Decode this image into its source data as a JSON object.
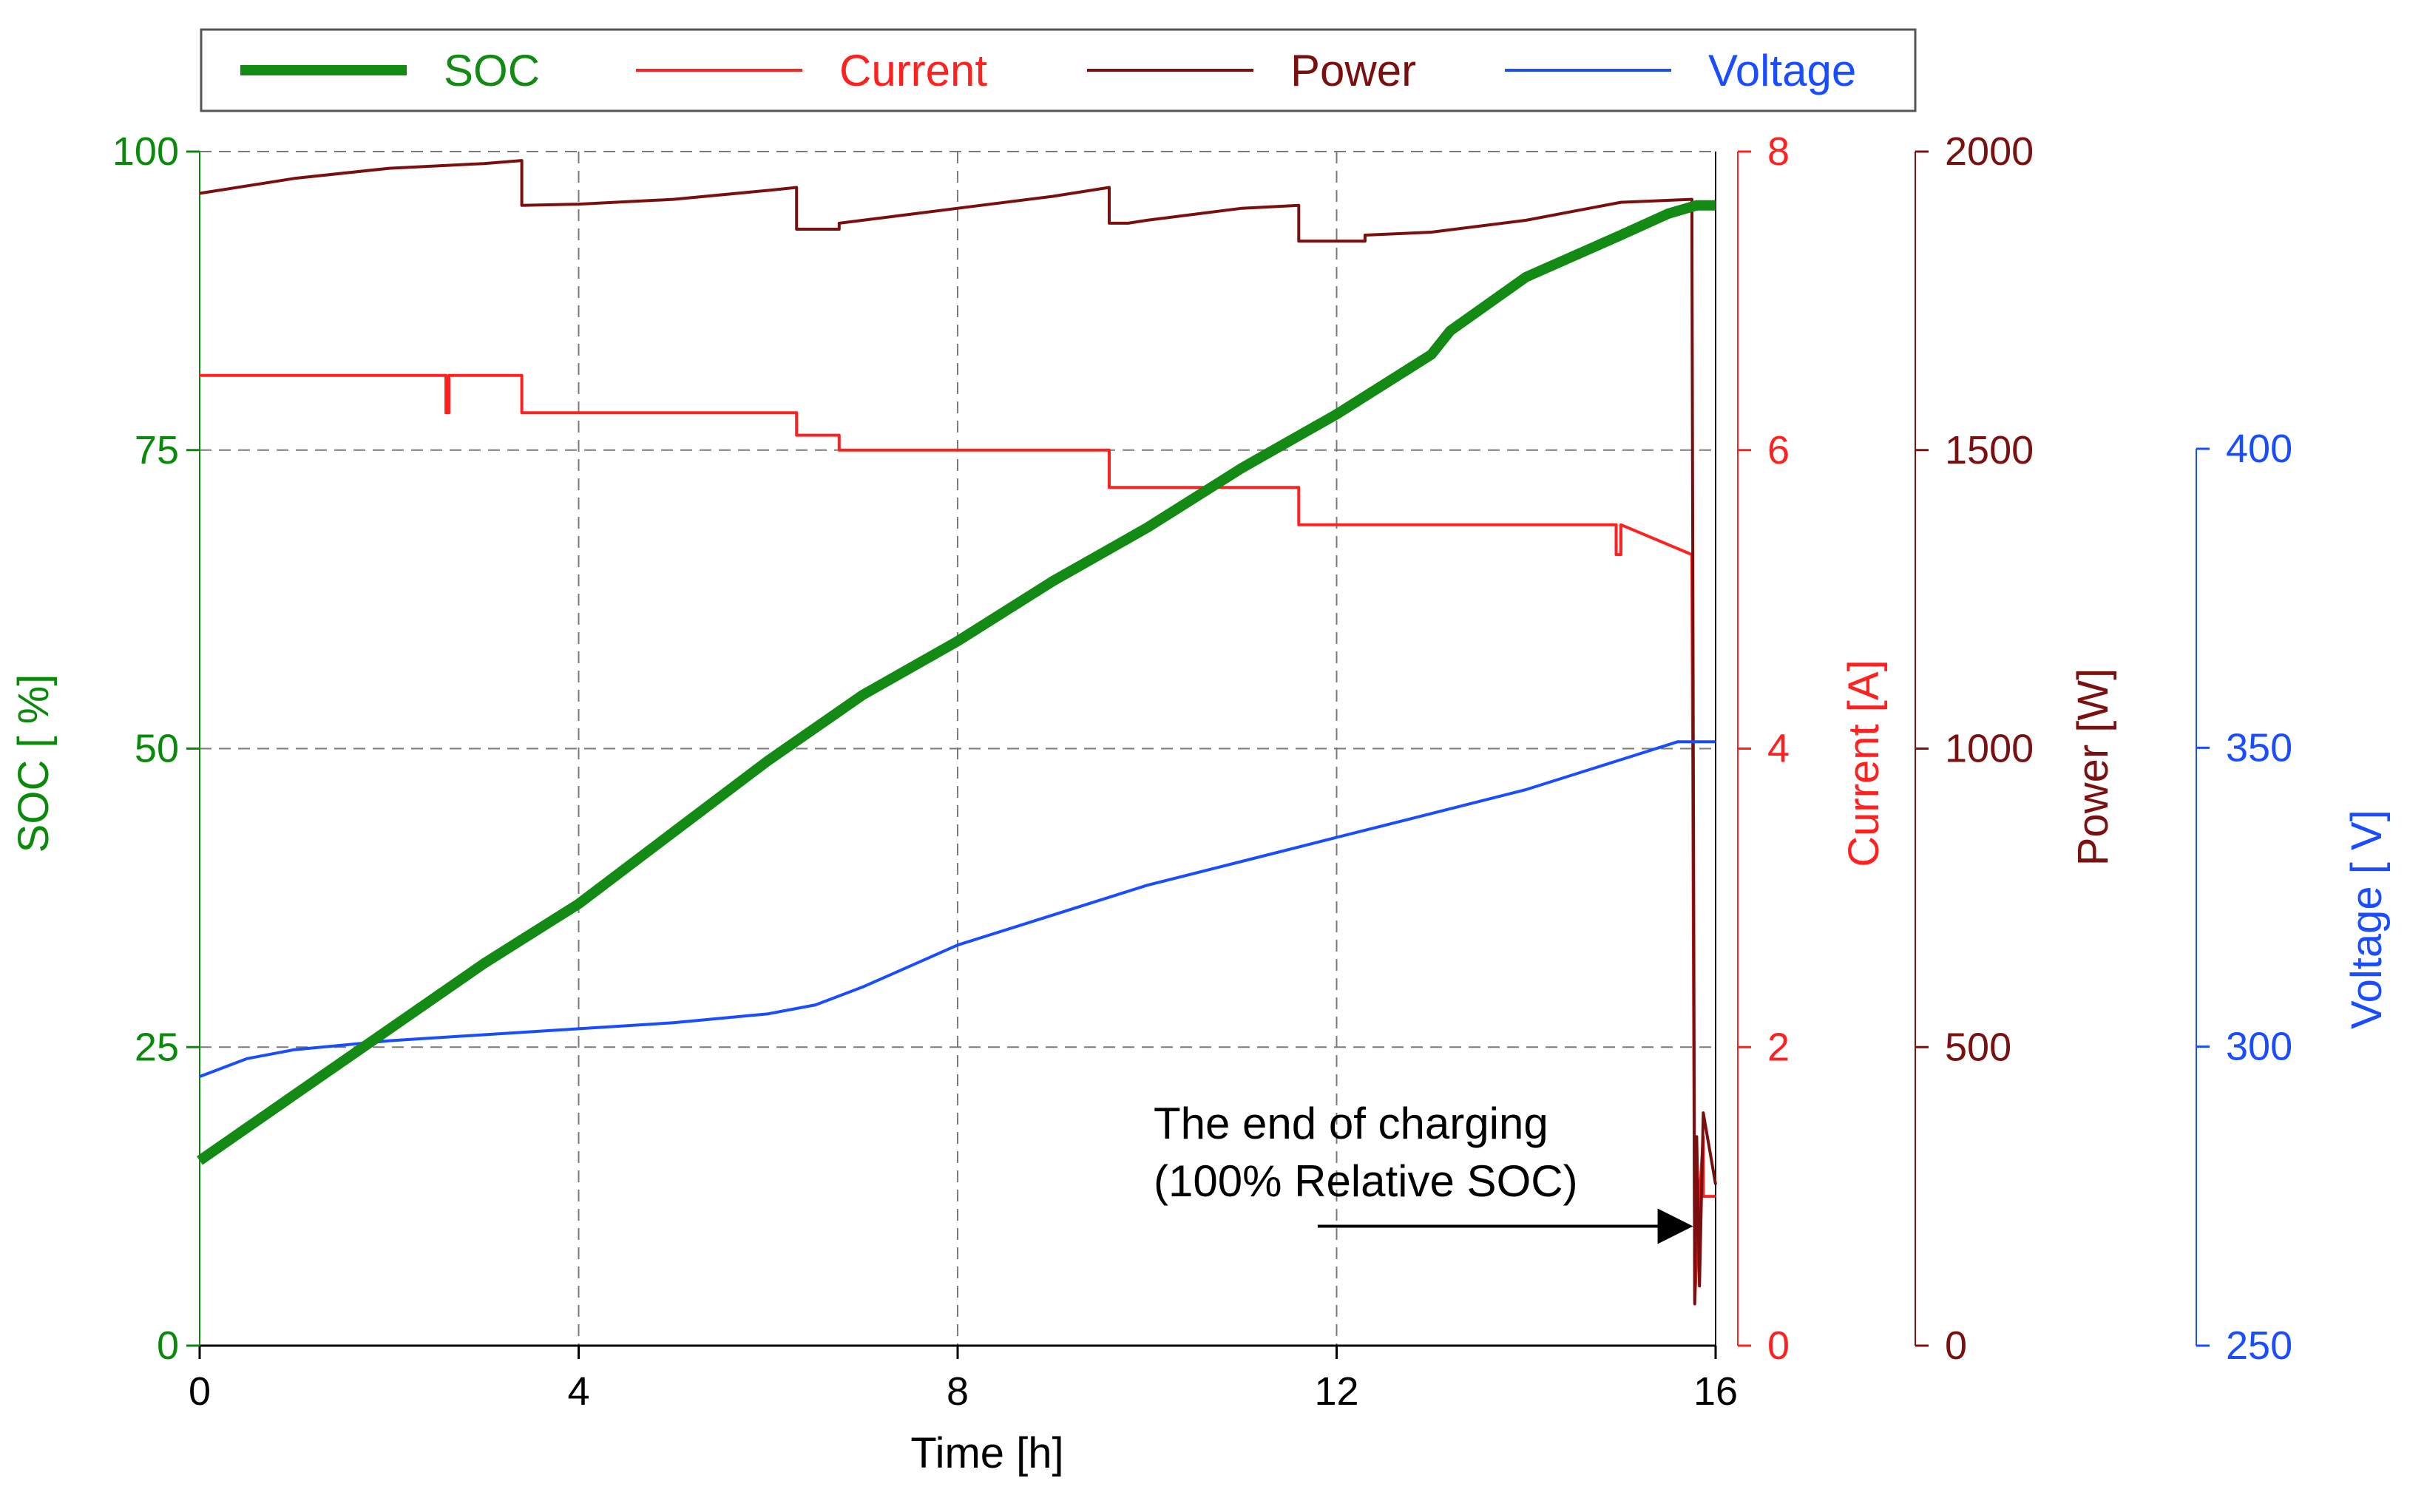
{
  "chart_data": {
    "type": "line",
    "x": {
      "label": "Time [h]",
      "range": [
        0,
        16
      ],
      "ticks": [
        0,
        4,
        8,
        12,
        16
      ],
      "tick_labels": [
        "0",
        "4",
        "8",
        "12",
        "16"
      ]
    },
    "axes": [
      {
        "id": "soc",
        "title": "SOC [ %]",
        "range": [
          0,
          100
        ],
        "ticks": [
          0,
          25,
          50,
          75,
          100
        ],
        "tick_labels": [
          "0",
          "25",
          "50",
          "75",
          "100"
        ],
        "color": "#0a8a0a",
        "side": "left"
      },
      {
        "id": "current",
        "title": "Current [A]",
        "range": [
          0,
          8
        ],
        "ticks": [
          0,
          2,
          4,
          6,
          8
        ],
        "tick_labels": [
          "0",
          "2",
          "4",
          "6",
          "8"
        ],
        "color": "#ff2020",
        "side": "right"
      },
      {
        "id": "power",
        "title": "Power [W]",
        "range": [
          0,
          2000
        ],
        "ticks": [
          0,
          500,
          1000,
          1500,
          2000
        ],
        "tick_labels": [
          "0",
          "500",
          "1000",
          "1500",
          "2000"
        ],
        "color": "#7a1010",
        "side": "right"
      },
      {
        "id": "voltage",
        "title": "Voltage [ V]",
        "range": [
          250,
          400
        ],
        "ticks": [
          250,
          300,
          350,
          400
        ],
        "tick_labels": [
          "250",
          "300",
          "350",
          "400"
        ],
        "color": "#1a4dff",
        "side": "right"
      }
    ],
    "grid": true,
    "legend_position": "top",
    "series": [
      {
        "name": "SOC",
        "axis": "soc",
        "color": "#138a13",
        "width": "thick",
        "x": [
          0,
          1,
          2,
          3,
          4,
          5,
          6,
          7,
          8,
          9,
          10,
          11,
          12,
          13,
          13.2,
          14,
          15,
          15.5,
          15.8,
          16
        ],
        "y": [
          15.5,
          21,
          26.5,
          32,
          37,
          43,
          49,
          54.5,
          59,
          64,
          68.5,
          73.5,
          78,
          83,
          85,
          89.5,
          93,
          94.8,
          95.5,
          95.5
        ]
      },
      {
        "name": "Current",
        "axis": "current",
        "color": "#ff2020",
        "width": "thin",
        "x": [
          0,
          2.6,
          2.6,
          2.63,
          2.63,
          3.4,
          3.4,
          6.3,
          6.3,
          6.75,
          6.75,
          9.6,
          9.6,
          9.8,
          9.8,
          11.6,
          11.6,
          12.3,
          12.3,
          14.95,
          14.95,
          15.0,
          15.0,
          15.75,
          15.75,
          15.78,
          15.78,
          15.83,
          15.83,
          15.87,
          15.87,
          16
        ],
        "y": [
          6.5,
          6.5,
          6.25,
          6.25,
          6.5,
          6.5,
          6.25,
          6.25,
          6.1,
          6.1,
          6.0,
          6.0,
          5.75,
          5.75,
          5.75,
          5.75,
          5.5,
          5.5,
          5.5,
          5.5,
          5.3,
          5.3,
          5.5,
          5.3,
          5.3,
          0.3,
          0.3,
          1.0,
          1.0,
          1.4,
          1.0,
          1.0
        ]
      },
      {
        "name": "Power",
        "axis": "power",
        "color": "#7a0f0f",
        "width": "thin",
        "x": [
          0,
          1,
          2,
          3,
          3.4,
          3.4,
          4,
          5,
          6,
          6.3,
          6.3,
          6.75,
          6.75,
          7,
          8,
          9,
          9.6,
          9.6,
          9.8,
          9.8,
          10,
          11,
          11.6,
          11.6,
          12.3,
          12.3,
          13,
          14,
          15,
          15.75,
          15.75,
          15.78,
          15.8,
          15.83,
          15.87,
          16
        ],
        "y": [
          1930,
          1955,
          1972,
          1980,
          1985,
          1910,
          1912,
          1920,
          1935,
          1940,
          1870,
          1870,
          1880,
          1885,
          1905,
          1925,
          1940,
          1880,
          1880,
          1880,
          1885,
          1905,
          1910,
          1850,
          1850,
          1860,
          1865,
          1885,
          1915,
          1920,
          1850,
          70,
          350,
          100,
          390,
          270
        ]
      },
      {
        "name": "Voltage",
        "axis": "voltage",
        "color": "#1a4dff",
        "width": "thin",
        "x": [
          0,
          0.5,
          1,
          2,
          3,
          4,
          5,
          6,
          6.5,
          7,
          8,
          9,
          10,
          11,
          12,
          13,
          14,
          15,
          15.6,
          16
        ],
        "y": [
          295,
          298,
          299.5,
          301,
          302,
          303,
          304,
          305.5,
          307,
          310,
          317,
          322,
          327,
          331,
          335,
          339,
          343,
          348,
          351,
          351
        ]
      }
    ],
    "annotations": [
      {
        "lines": [
          "The end of charging",
          "(100% Relative SOC)"
        ],
        "arrow_from": [
          11.8,
          10
        ],
        "arrow_to": [
          15.7,
          10
        ]
      }
    ]
  }
}
